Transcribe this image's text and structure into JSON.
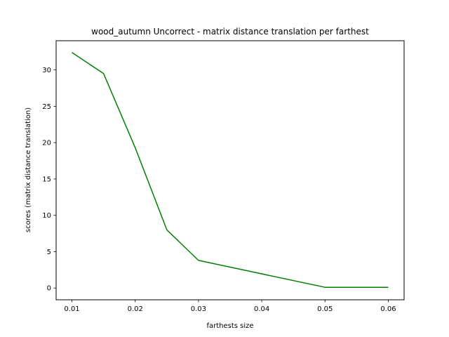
{
  "chart_data": {
    "type": "line",
    "title": "wood_autumn Uncorrect - matrix distance translation per farthest",
    "xlabel": "farthests size",
    "ylabel": "scores (matrix distance translation)",
    "xlim": [
      0.0075,
      0.0625
    ],
    "ylim": [
      -1.62,
      34.02
    ],
    "xticks": [
      0.01,
      0.02,
      0.03,
      0.04,
      0.05,
      0.06
    ],
    "xtick_labels": [
      "0.01",
      "0.02",
      "0.03",
      "0.04",
      "0.05",
      "0.06"
    ],
    "yticks": [
      0,
      5,
      10,
      15,
      20,
      25,
      30
    ],
    "ytick_labels": [
      "0",
      "5",
      "10",
      "15",
      "20",
      "25",
      "30"
    ],
    "grid": false,
    "series": [
      {
        "color": "#008000",
        "x": [
          0.01,
          0.015,
          0.02,
          0.025,
          0.03,
          0.05,
          0.06
        ],
        "y": [
          32.4,
          29.5,
          19.3,
          8.0,
          3.8,
          0.1,
          0.1
        ]
      }
    ]
  }
}
